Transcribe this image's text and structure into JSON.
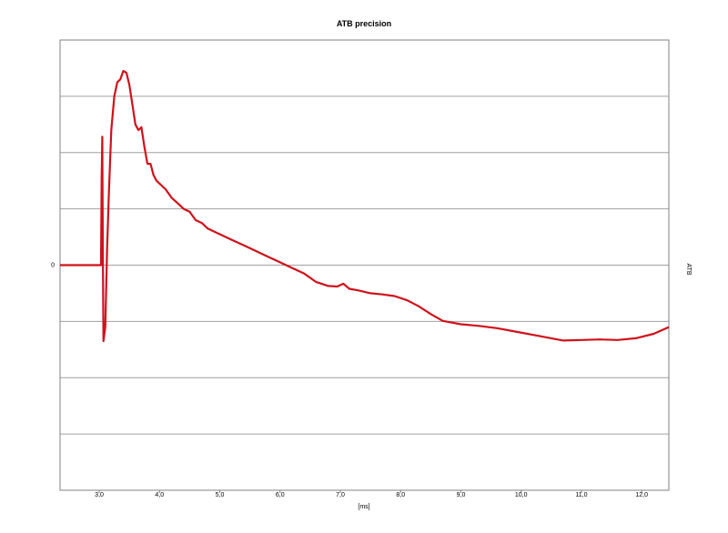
{
  "chart_data": {
    "type": "line",
    "title": "ATB precision",
    "xlabel": "[ms]",
    "ylabel_right": "ATB",
    "xlim": [
      2.35,
      12.45
    ],
    "ylim": [
      -4.0,
      4.0
    ],
    "x_ticks": [
      "3,0",
      "4,0",
      "5,0",
      "6,0",
      "7,0",
      "8,0",
      "9,0",
      "10,0",
      "11,0",
      "12,0"
    ],
    "x_tick_values": [
      3,
      4,
      5,
      6,
      7,
      8,
      9,
      10,
      11,
      12
    ],
    "y_ticks": [
      "0"
    ],
    "y_tick_values": [
      0
    ],
    "grid_y_values": [
      -3,
      -2,
      -1,
      0,
      1,
      2,
      3
    ],
    "grid": true,
    "colors": {
      "line": "#d0111b",
      "grid": "#a0a0a0",
      "frame": "#808080"
    },
    "series": [
      {
        "x": [
          2.35,
          2.8,
          3.0,
          3.03,
          3.04,
          3.05,
          3.06,
          3.07,
          3.1,
          3.13,
          3.16,
          3.2,
          3.25,
          3.3,
          3.35,
          3.4,
          3.45,
          3.5,
          3.55,
          3.6,
          3.65,
          3.7,
          3.75,
          3.8,
          3.85,
          3.9,
          3.95,
          4.0,
          4.1,
          4.2,
          4.3,
          4.4,
          4.5,
          4.6,
          4.7,
          4.8,
          5.0,
          5.2,
          5.4,
          5.6,
          5.8,
          6.0,
          6.2,
          6.4,
          6.6,
          6.8,
          6.95,
          7.05,
          7.15,
          7.3,
          7.5,
          7.7,
          7.9,
          8.1,
          8.3,
          8.5,
          8.7,
          9.0,
          9.3,
          9.6,
          9.9,
          10.2,
          10.5,
          10.7,
          11.0,
          11.3,
          11.6,
          11.9,
          12.2,
          12.45
        ],
        "y": [
          0.0,
          0.0,
          0.0,
          0.0,
          1.5,
          2.28,
          0.3,
          -1.35,
          -1.1,
          0.3,
          1.3,
          2.4,
          3.0,
          3.25,
          3.3,
          3.45,
          3.42,
          3.2,
          2.85,
          2.5,
          2.4,
          2.45,
          2.1,
          1.8,
          1.8,
          1.6,
          1.5,
          1.45,
          1.35,
          1.2,
          1.1,
          1.0,
          0.95,
          0.8,
          0.75,
          0.65,
          0.55,
          0.45,
          0.35,
          0.25,
          0.15,
          0.05,
          -0.05,
          -0.15,
          -0.3,
          -0.37,
          -0.38,
          -0.33,
          -0.42,
          -0.45,
          -0.5,
          -0.52,
          -0.55,
          -0.62,
          -0.73,
          -0.87,
          -0.99,
          -1.05,
          -1.08,
          -1.12,
          -1.18,
          -1.24,
          -1.3,
          -1.34,
          -1.33,
          -1.32,
          -1.33,
          -1.3,
          -1.22,
          -1.1
        ]
      }
    ]
  }
}
